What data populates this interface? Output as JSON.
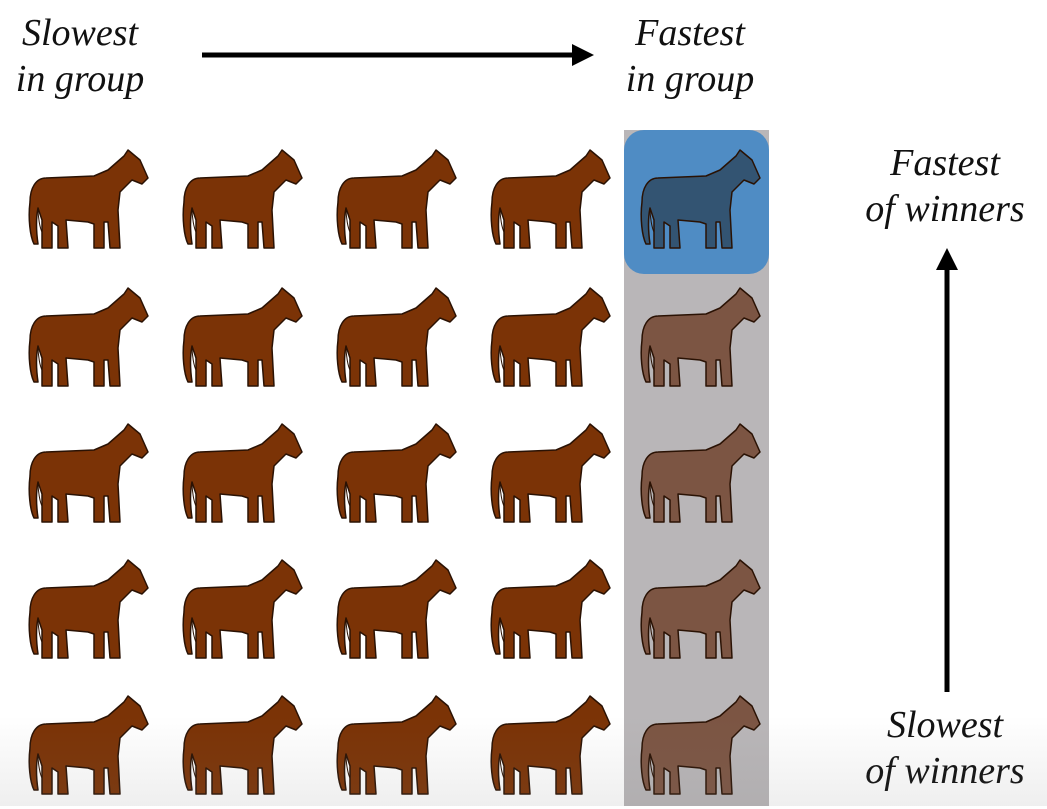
{
  "labels": {
    "slowest_in_group": [
      "Slowest",
      "in group"
    ],
    "fastest_in_group": [
      "Fastest",
      "in group"
    ],
    "fastest_of_winners": [
      "Fastest",
      "of winners"
    ],
    "slowest_of_winners": [
      "Slowest",
      "of winners"
    ]
  },
  "grid": {
    "rows": 5,
    "columns": 5,
    "highlighted_column": 5,
    "highlighted_cell": {
      "row": 1,
      "column": 5
    }
  },
  "colors": {
    "horse": "#7b3306",
    "horse_outline": "#2a1204",
    "column_highlight": "#b9b6b8",
    "cell_highlight": "#4f8cc4",
    "arrow": "#000000"
  },
  "icons": {
    "horse": "horse-icon",
    "arrow_right": "arrow-right-icon",
    "arrow_up": "arrow-up-icon"
  }
}
